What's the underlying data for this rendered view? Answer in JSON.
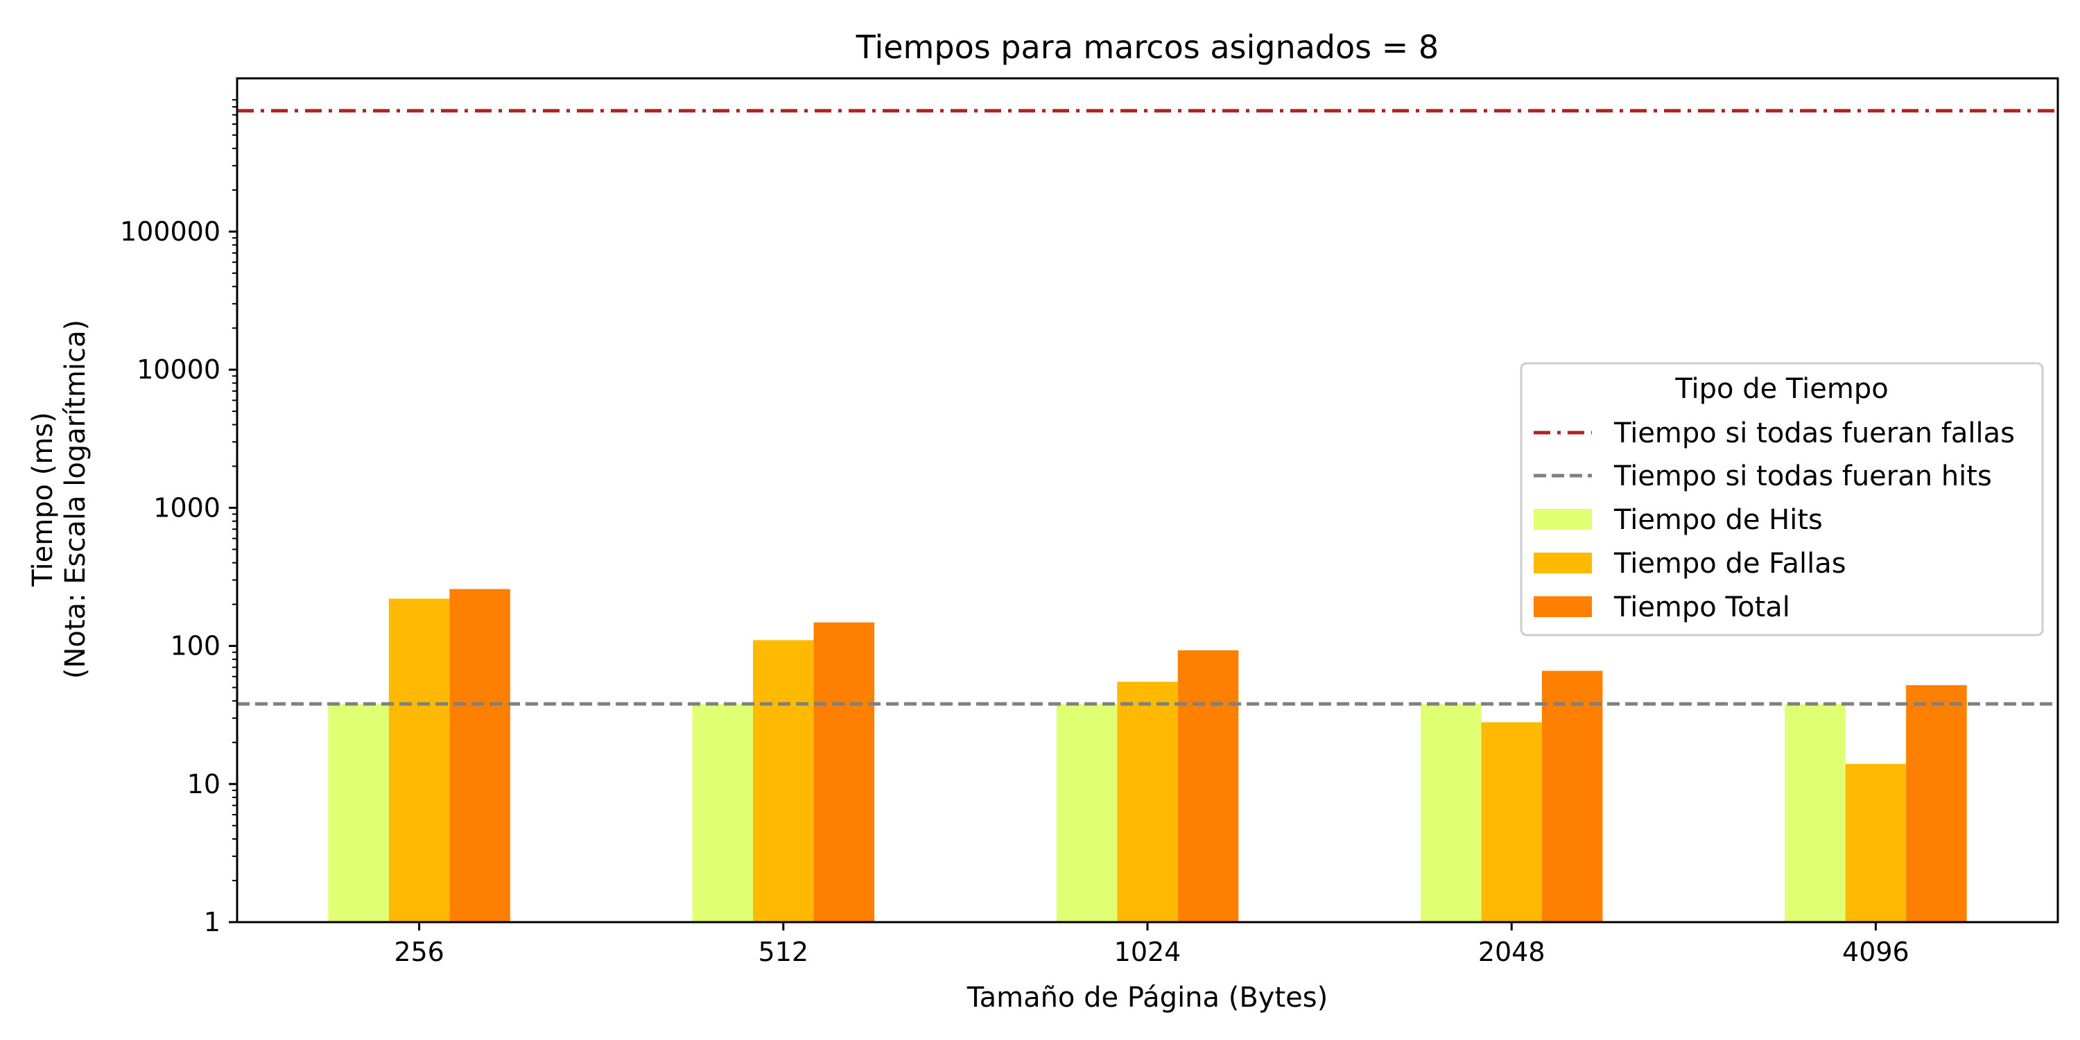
{
  "chart_data": {
    "type": "bar",
    "title": "Tiempos para marcos asignados = 8",
    "xlabel": "Tamaño de Página (Bytes)",
    "ylabel_line1": "Tiempo (ms)",
    "ylabel_line2": "(Nota: Escala logarítmica)",
    "yscale": "log",
    "ylim": [
      1,
      1000000
    ],
    "yticks": [
      1,
      10,
      100,
      1000,
      10000,
      100000
    ],
    "ytick_labels": [
      "1",
      "10",
      "100",
      "1000",
      "10000",
      "100000"
    ],
    "categories": [
      "256",
      "512",
      "1024",
      "2048",
      "4096"
    ],
    "series": [
      {
        "name": "Tiempo de Hits",
        "color": "#e0ff73",
        "values": [
          38,
          38,
          38,
          38,
          38
        ]
      },
      {
        "name": "Tiempo de Fallas",
        "color": "#ffba00",
        "values": [
          220,
          110,
          55,
          28,
          14
        ]
      },
      {
        "name": "Tiempo Total",
        "color": "#ff8000",
        "values": [
          258,
          148,
          93,
          66,
          52
        ]
      }
    ],
    "reference_lines": [
      {
        "name": "Tiempo si todas fueran fallas",
        "value": 750000,
        "color": "#b22222",
        "style": "dashdot"
      },
      {
        "name": "Tiempo si todas fueran hits",
        "value": 38,
        "color": "#808080",
        "style": "dashed"
      }
    ],
    "legend": {
      "title": "Tipo de Tiempo",
      "placement": "center-right"
    },
    "grid": false
  }
}
